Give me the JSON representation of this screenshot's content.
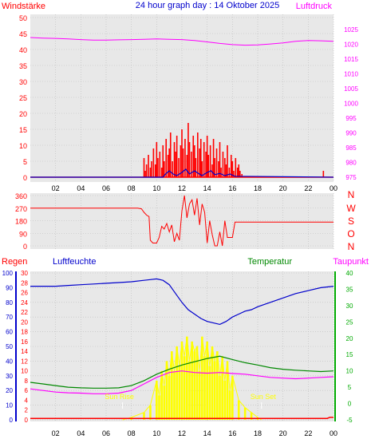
{
  "title": "24 hour graph day : 14 Oktober 2025",
  "colors": {
    "background": "#e8e8e8",
    "red": "#ff0000",
    "magenta": "#ff00ff",
    "blue": "#0000cc",
    "green": "#008800",
    "dark_green": "#00aa00",
    "yellow": "#ffff00",
    "grid": "#bbbbbb",
    "text": "#000000"
  },
  "x_ticks": [
    "02",
    "04",
    "06",
    "08",
    "10",
    "12",
    "14",
    "16",
    "18",
    "20",
    "22",
    "00"
  ],
  "chart_data": [
    {
      "type": "line",
      "panel": "wind",
      "title": "24 hour graph day : 14 Oktober 2025",
      "left_label": "Windstärke",
      "right_label": "Luftdruck",
      "left_ticks": [
        "0",
        "5",
        "10",
        "15",
        "20",
        "25",
        "30",
        "35",
        "40",
        "45",
        "50"
      ],
      "right_ticks": [
        "975",
        "980",
        "985",
        "990",
        "995",
        "1000",
        "1005",
        "1010",
        "1015",
        "1020",
        "1025"
      ],
      "ylim_left": [
        0,
        50
      ],
      "ylim_right": [
        975,
        1027
      ],
      "xlim_hours": [
        0,
        24
      ],
      "grid": true,
      "series": [
        {
          "name": "Luftdruck",
          "axis": "right",
          "color": "#ff00ff",
          "x": [
            0,
            1,
            2,
            3,
            4,
            5,
            6,
            7,
            8,
            9,
            10,
            11,
            12,
            13,
            14,
            15,
            16,
            17,
            18,
            19,
            20,
            21,
            22,
            23,
            24
          ],
          "y": [
            1022.3,
            1022.1,
            1022.0,
            1021.8,
            1021.6,
            1021.4,
            1021.4,
            1021.5,
            1021.6,
            1021.7,
            1021.8,
            1021.7,
            1021.6,
            1021.3,
            1020.8,
            1020.3,
            1019.9,
            1019.7,
            1019.8,
            1020.1,
            1020.5,
            1021.0,
            1021.3,
            1021.2,
            1021.0
          ]
        },
        {
          "name": "Gust",
          "axis": "left",
          "color": "#ff0000",
          "mode": "bars",
          "x": [
            9.0,
            9.1,
            9.2,
            9.35,
            9.5,
            9.6,
            9.75,
            9.9,
            10.0,
            10.1,
            10.25,
            10.4,
            10.5,
            10.6,
            10.75,
            10.9,
            11.0,
            11.1,
            11.25,
            11.4,
            11.5,
            11.6,
            11.75,
            11.9,
            12.0,
            12.1,
            12.25,
            12.4,
            12.5,
            12.6,
            12.75,
            12.9,
            13.0,
            13.1,
            13.25,
            13.4,
            13.5,
            13.6,
            13.75,
            13.9,
            14.0,
            14.1,
            14.25,
            14.4,
            14.5,
            14.6,
            14.75,
            14.9,
            15.0,
            15.1,
            15.25,
            15.4,
            15.5,
            15.6,
            15.75,
            15.9,
            16.0,
            16.1,
            16.25,
            16.4,
            16.5,
            16.6,
            16.75,
            23.2
          ],
          "y": [
            6,
            2,
            4,
            7,
            3,
            5,
            9,
            4,
            11,
            6,
            8,
            3,
            10,
            5,
            12,
            7,
            9,
            14,
            5,
            11,
            8,
            13,
            6,
            10,
            15,
            9,
            12,
            7,
            17,
            11,
            8,
            13,
            10,
            6,
            14,
            9,
            12,
            5,
            11,
            8,
            13,
            7,
            10,
            4,
            12,
            6,
            9,
            5,
            11,
            3,
            8,
            6,
            4,
            10,
            3,
            7,
            5,
            2,
            6,
            3,
            4,
            2,
            1,
            2
          ]
        },
        {
          "name": "Wind",
          "axis": "left",
          "color": "#0000cc",
          "x": [
            0,
            10.5,
            10.7,
            11.0,
            11.3,
            11.6,
            12.0,
            12.3,
            12.6,
            13.0,
            13.3,
            13.6,
            14.0,
            14.3,
            14.6,
            15.0,
            15.4,
            15.8,
            16.2,
            24
          ],
          "y": [
            0,
            0,
            1,
            2,
            1,
            0.5,
            1.5,
            2.5,
            1,
            2,
            1.2,
            0.5,
            1.5,
            2,
            0.8,
            1.2,
            0.5,
            1,
            0.3,
            0
          ]
        }
      ]
    },
    {
      "type": "line",
      "panel": "direction",
      "left_ticks": [
        "0",
        "90",
        "180",
        "270",
        "360"
      ],
      "right_ticks": [
        "N",
        "O",
        "S",
        "W",
        "N"
      ],
      "ylim": [
        0,
        360
      ],
      "xlim_hours": [
        0,
        24
      ],
      "grid": true,
      "series": [
        {
          "name": "Richtung",
          "color": "#ff0000",
          "x": [
            0,
            8.5,
            8.8,
            9.0,
            9.2,
            9.4,
            9.5,
            9.7,
            10.0,
            10.2,
            10.4,
            10.6,
            10.8,
            11.0,
            11.2,
            11.4,
            11.6,
            11.8,
            12.0,
            12.2,
            12.4,
            12.6,
            12.8,
            13.0,
            13.2,
            13.4,
            13.6,
            13.8,
            14.0,
            14.2,
            14.4,
            14.6,
            14.8,
            15.0,
            15.2,
            15.4,
            15.6,
            15.8,
            16.0,
            16.2,
            16.5,
            24
          ],
          "y": [
            270,
            270,
            265,
            240,
            220,
            210,
            40,
            20,
            20,
            60,
            140,
            120,
            160,
            100,
            150,
            30,
            90,
            40,
            250,
            360,
            200,
            300,
            330,
            220,
            340,
            150,
            300,
            240,
            20,
            180,
            80,
            0,
            0,
            100,
            0,
            180,
            60,
            60,
            60,
            170,
            170,
            170
          ]
        }
      ]
    },
    {
      "type": "line",
      "panel": "weather",
      "labels": [
        "Regen",
        "Luftfeuchte",
        "Temperatur",
        "Taupunkt"
      ],
      "left_ticks_humidity": [
        "0",
        "10",
        "20",
        "30",
        "40",
        "50",
        "60",
        "70",
        "80",
        "90",
        "100"
      ],
      "left_ticks_rain": [
        "0",
        "2",
        "4",
        "6",
        "8",
        "10",
        "12",
        "14",
        "16",
        "18",
        "20",
        "22",
        "24",
        "26",
        "28",
        "30"
      ],
      "right_ticks": [
        "-5",
        "0",
        "5",
        "10",
        "15",
        "20",
        "25",
        "30",
        "35",
        "40"
      ],
      "ylim_temp": [
        -5,
        40
      ],
      "ylim_humidity": [
        0,
        100
      ],
      "ylim_rain": [
        0,
        30
      ],
      "xlim_hours": [
        0,
        24
      ],
      "annotations": [
        "Sun Rise",
        "Sun Set"
      ],
      "sun_rise_hour": 7.3,
      "sun_set_hour": 18.3,
      "grid": true,
      "series": [
        {
          "name": "Luftfeuchte",
          "color": "#0000cc",
          "x": [
            0,
            1,
            2,
            3,
            4,
            5,
            6,
            7,
            8,
            9,
            9.5,
            10,
            10.5,
            11,
            11.5,
            12,
            12.5,
            13,
            13.5,
            14,
            14.5,
            15,
            15.5,
            16,
            16.5,
            17,
            17.5,
            18,
            19,
            20,
            21,
            22,
            23,
            24
          ],
          "y": [
            91,
            91,
            91,
            91.5,
            92,
            92.5,
            93,
            93.5,
            94,
            95,
            95.5,
            96,
            95,
            92,
            86,
            80,
            75,
            72,
            69,
            67,
            66,
            65,
            67,
            70,
            72,
            74,
            75,
            77,
            80,
            83,
            86,
            88,
            90,
            91
          ]
        },
        {
          "name": "Temperatur",
          "color": "#008800",
          "x": [
            0,
            1,
            2,
            3,
            4,
            5,
            6,
            7,
            8,
            9,
            10,
            11,
            12,
            13,
            14,
            15,
            16,
            17,
            18,
            19,
            20,
            21,
            22,
            23,
            24
          ],
          "y": [
            6.5,
            6.0,
            5.5,
            5.0,
            4.8,
            4.7,
            4.7,
            4.8,
            5.5,
            7.0,
            9.0,
            10.5,
            11.8,
            12.8,
            13.8,
            14.5,
            13.5,
            12.5,
            11.8,
            11.0,
            10.5,
            10.2,
            10.0,
            9.8,
            10.0
          ]
        },
        {
          "name": "Taupunkt",
          "color": "#ff00ff",
          "x": [
            0,
            1,
            2,
            3,
            4,
            5,
            6,
            7,
            8,
            9,
            10,
            11,
            12,
            13,
            14,
            15,
            16,
            17,
            18,
            19,
            20,
            21,
            22,
            23,
            24
          ],
          "y": [
            4.5,
            4.0,
            3.5,
            3.3,
            3.2,
            3.0,
            3.0,
            3.2,
            4.0,
            6.0,
            8.0,
            9.5,
            10.0,
            9.5,
            9.3,
            9.5,
            9.2,
            9.0,
            8.5,
            8.0,
            7.8,
            7.6,
            7.8,
            8.0,
            8.2
          ]
        },
        {
          "name": "Regen",
          "color": "#ff0000",
          "x": [
            0,
            23.5,
            23.7,
            24
          ],
          "y": [
            0.3,
            0.3,
            0.5,
            0.5
          ]
        },
        {
          "name": "Sonne",
          "color": "#ffff00",
          "mode": "bars",
          "x": [
            7.3,
            8,
            9,
            9.5,
            10,
            10.2,
            10.4,
            10.6,
            10.8,
            11.0,
            11.2,
            11.4,
            11.6,
            11.8,
            12.0,
            12.2,
            12.4,
            12.6,
            12.8,
            13.0,
            13.2,
            13.4,
            13.6,
            13.8,
            14.0,
            14.2,
            14.4,
            14.6,
            14.8,
            15.0,
            15.2,
            15.4,
            15.6,
            15.8,
            16.0,
            16.5,
            17,
            17.5,
            18,
            18.3
          ],
          "y": [
            0,
            0.5,
            1.5,
            3,
            8,
            5,
            10,
            7,
            12,
            9,
            14,
            10,
            15,
            11,
            16,
            13,
            17,
            12,
            16,
            14,
            15,
            10,
            17,
            13,
            16,
            11,
            15,
            12,
            14,
            9,
            13,
            8,
            12,
            6,
            9,
            4,
            2.5,
            1.5,
            0.5,
            0
          ]
        }
      ]
    }
  ]
}
